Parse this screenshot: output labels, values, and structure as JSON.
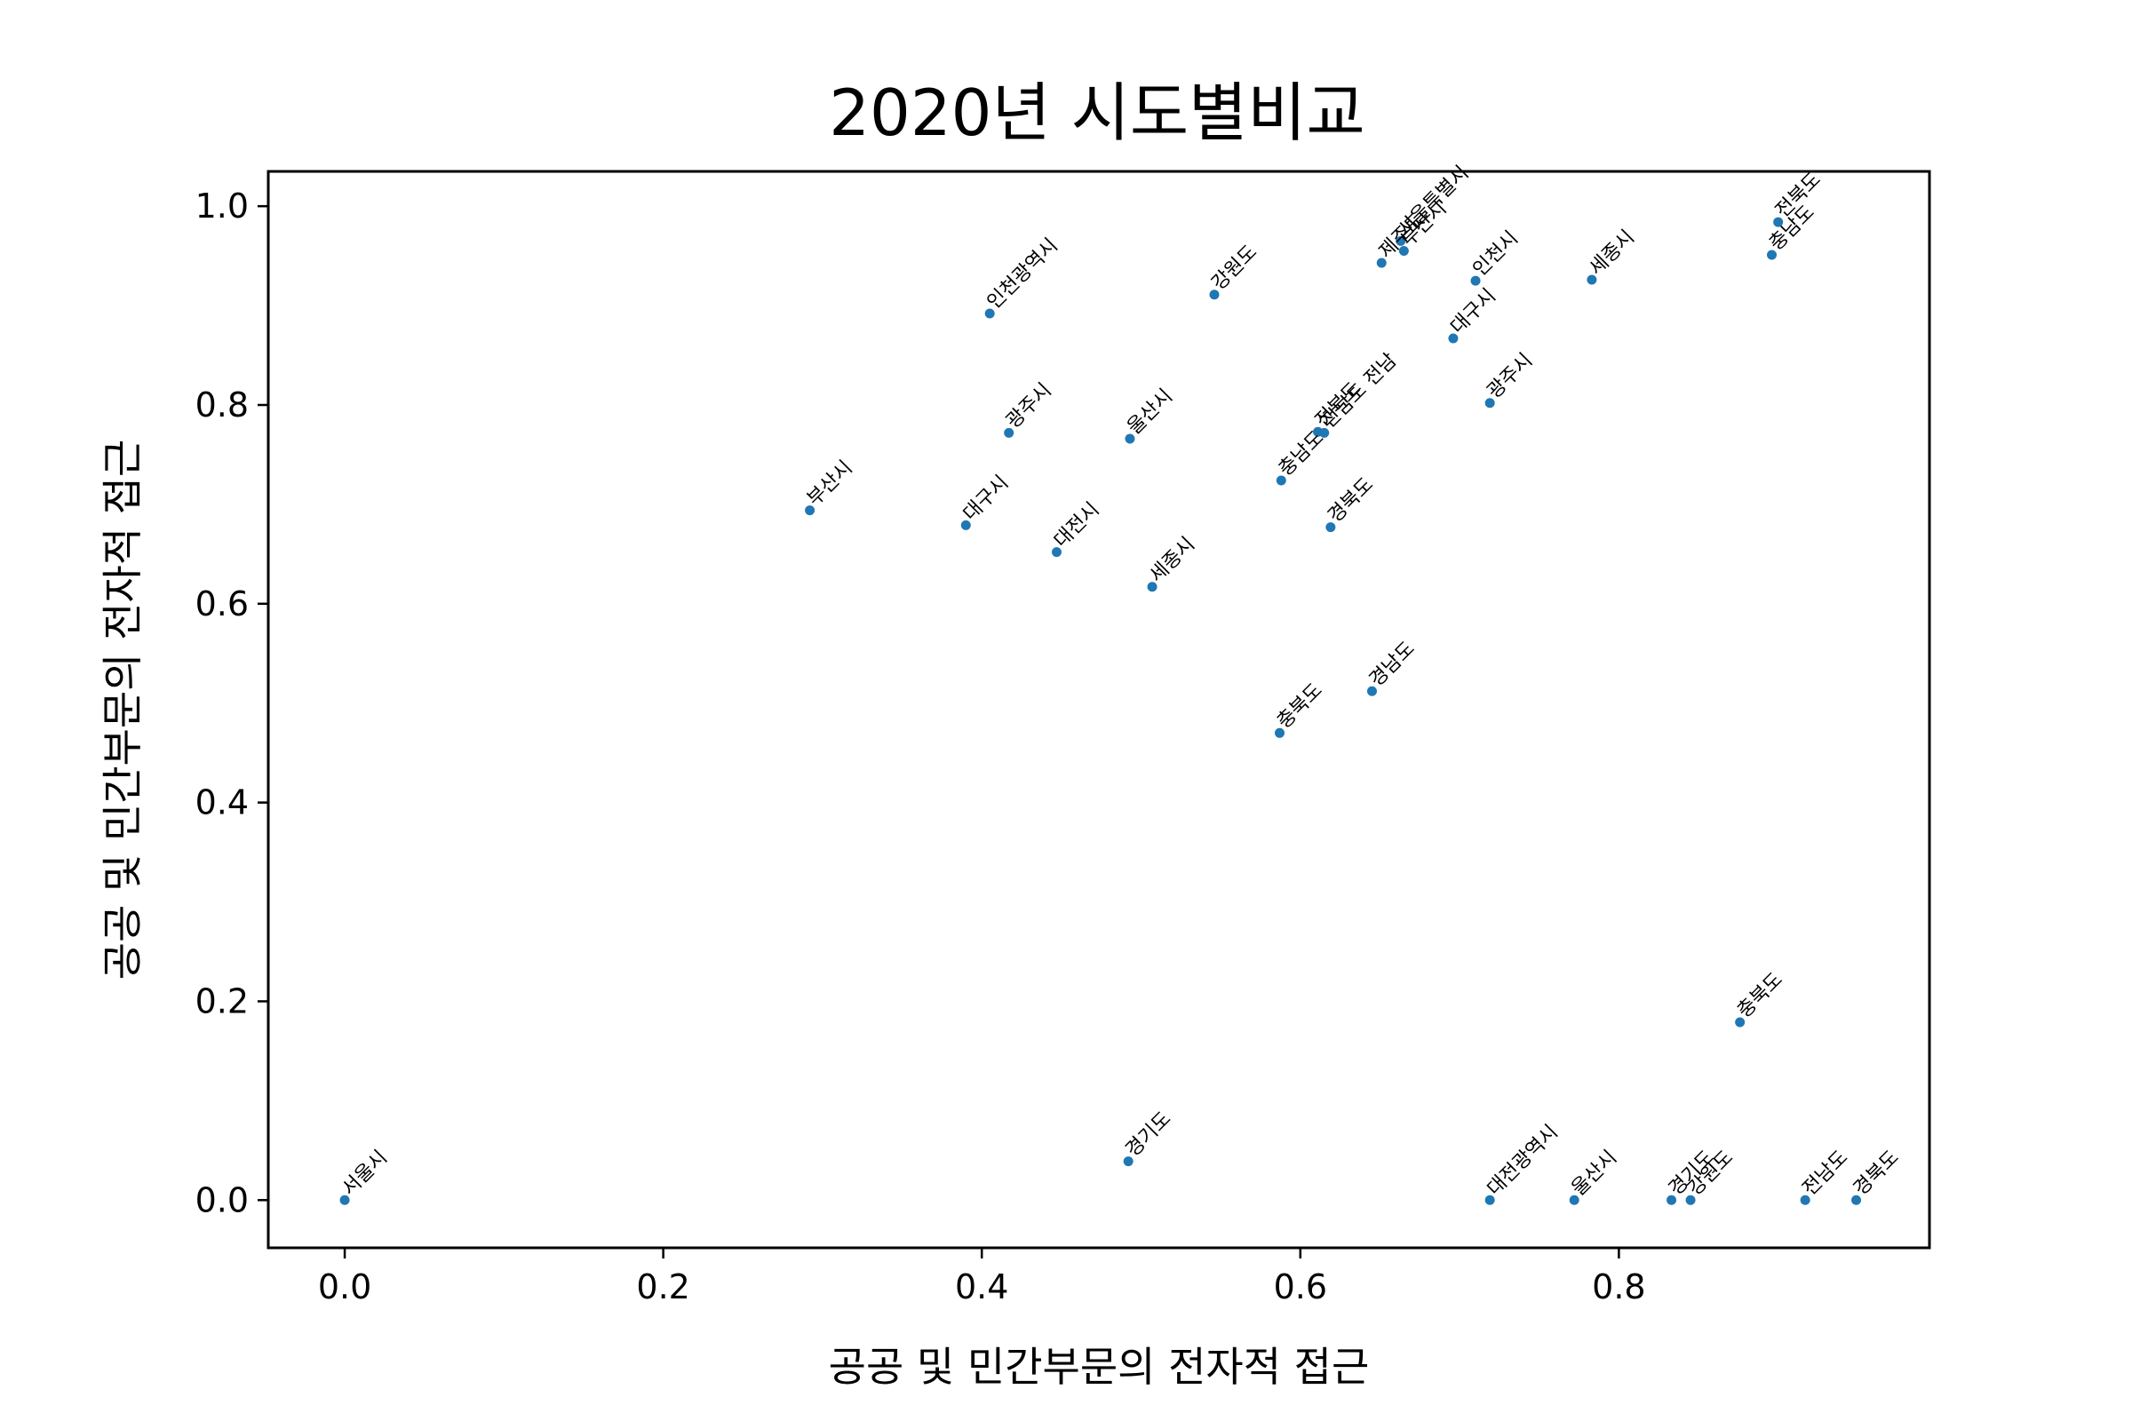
{
  "chart_data": {
    "type": "scatter",
    "title": "2020년 시도별비교",
    "xlabel": "공공 및 민간부문의 전자적 접근",
    "ylabel": "공공 및 민간부문의 전자적 접근",
    "xlim": [
      -0.048,
      0.995
    ],
    "ylim": [
      -0.048,
      1.035
    ],
    "grid": false,
    "legend": "none",
    "point_color": "#1f77b4",
    "x_ticks": [
      {
        "value": 0.0,
        "label": "0.0"
      },
      {
        "value": 0.2,
        "label": "0.2"
      },
      {
        "value": 0.4,
        "label": "0.4"
      },
      {
        "value": 0.6,
        "label": "0.6"
      },
      {
        "value": 0.8,
        "label": "0.8"
      }
    ],
    "y_ticks": [
      {
        "value": 0.0,
        "label": "0.0"
      },
      {
        "value": 0.2,
        "label": "0.2"
      },
      {
        "value": 0.4,
        "label": "0.4"
      },
      {
        "value": 0.6,
        "label": "0.6"
      },
      {
        "value": 0.8,
        "label": "0.8"
      },
      {
        "value": 1.0,
        "label": "1.0"
      }
    ],
    "points": [
      {
        "x": 0.0,
        "y": 0.0,
        "label": "서울시"
      },
      {
        "x": 0.292,
        "y": 0.694,
        "label": "부산시"
      },
      {
        "x": 0.39,
        "y": 0.679,
        "label": "대구시"
      },
      {
        "x": 0.405,
        "y": 0.892,
        "label": "인천광역시"
      },
      {
        "x": 0.417,
        "y": 0.772,
        "label": "광주시"
      },
      {
        "x": 0.447,
        "y": 0.652,
        "label": "대전시"
      },
      {
        "x": 0.493,
        "y": 0.766,
        "label": "울산시"
      },
      {
        "x": 0.507,
        "y": 0.617,
        "label": "세종시"
      },
      {
        "x": 0.492,
        "y": 0.039,
        "label": "경기도"
      },
      {
        "x": 0.546,
        "y": 0.911,
        "label": "강원도"
      },
      {
        "x": 0.587,
        "y": 0.47,
        "label": "충북도"
      },
      {
        "x": 0.588,
        "y": 0.724,
        "label": "충남도"
      },
      {
        "x": 0.611,
        "y": 0.773,
        "label": "전북도"
      },
      {
        "x": 0.615,
        "y": 0.772,
        "label": "전남도 전남"
      },
      {
        "x": 0.619,
        "y": 0.677,
        "label": "경북도"
      },
      {
        "x": 0.645,
        "y": 0.512,
        "label": "경남도"
      },
      {
        "x": 0.651,
        "y": 0.943,
        "label": "제주도"
      },
      {
        "x": 0.663,
        "y": 0.965,
        "label": "서울특별시"
      },
      {
        "x": 0.665,
        "y": 0.955,
        "label": "부산시"
      },
      {
        "x": 0.696,
        "y": 0.867,
        "label": "대구시"
      },
      {
        "x": 0.71,
        "y": 0.925,
        "label": "인천시"
      },
      {
        "x": 0.719,
        "y": 0.802,
        "label": "광주시"
      },
      {
        "x": 0.719,
        "y": 0.0,
        "label": "대전광역시"
      },
      {
        "x": 0.772,
        "y": 0.0,
        "label": "울산시"
      },
      {
        "x": 0.783,
        "y": 0.926,
        "label": "세종시"
      },
      {
        "x": 0.833,
        "y": 0.0,
        "label": "경기도"
      },
      {
        "x": 0.845,
        "y": 0.0,
        "label": "강원도"
      },
      {
        "x": 0.876,
        "y": 0.179,
        "label": "충북도"
      },
      {
        "x": 0.896,
        "y": 0.951,
        "label": "충남도"
      },
      {
        "x": 0.9,
        "y": 0.984,
        "label": "전북도"
      },
      {
        "x": 0.917,
        "y": 0.0,
        "label": "전남도"
      },
      {
        "x": 0.949,
        "y": 0.0,
        "label": "경북도"
      }
    ]
  }
}
